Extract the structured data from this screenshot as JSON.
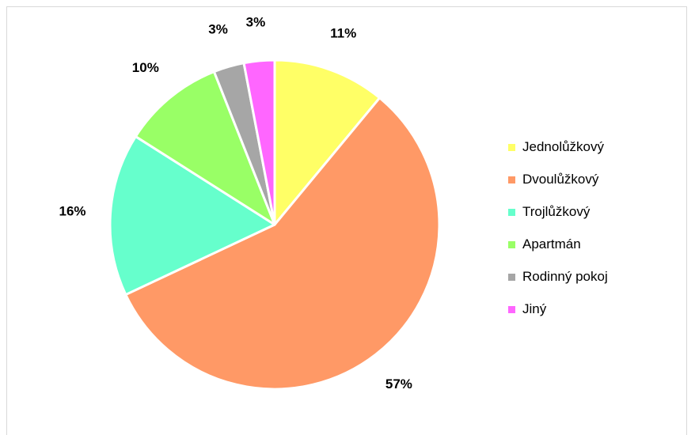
{
  "chart_data": {
    "type": "pie",
    "title": "",
    "categories": [
      "Jednolůžkový",
      "Dvoulůžkový",
      "Trojlůžkový",
      "Apartmán",
      "Rodinný pokoj",
      "Jiný"
    ],
    "values": [
      11,
      57,
      16,
      10,
      3,
      3
    ],
    "labels": [
      "11%",
      "57%",
      "16%",
      "10%",
      "3%",
      "3%"
    ],
    "colors": [
      "#FFFF66",
      "#FF9966",
      "#66FFCC",
      "#99FF66",
      "#A6A6A6",
      "#FF66FF"
    ],
    "legend_position": "right",
    "start_angle_deg": 0,
    "direction": "clockwise"
  }
}
